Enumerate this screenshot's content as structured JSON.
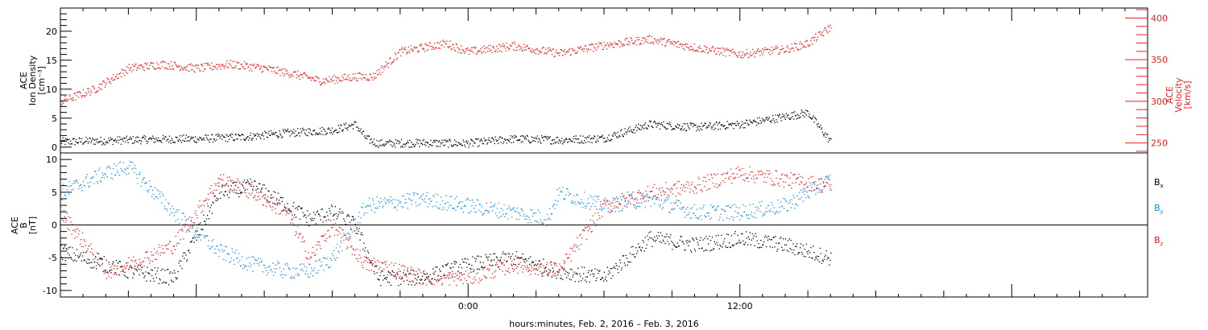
{
  "colors": {
    "black": "#000000",
    "red": "#ee1c1c",
    "blue": "#1a8ae6"
  },
  "xaxis": {
    "label": "hours:minutes, Feb.  2, 2016 – Feb.  3, 2016",
    "range_hours": [
      -18,
      30
    ],
    "tick_labels": [
      {
        "hour": 0,
        "text": "0:00"
      },
      {
        "hour": 12,
        "text": "12:00"
      }
    ]
  },
  "chart_data": [
    {
      "type": "scatter",
      "panel": "top",
      "left_axis": {
        "label_lines": [
          "ACE",
          "Ion Density",
          "[cm⁻³]"
        ],
        "ylim": [
          -1,
          24
        ],
        "ticks": [
          "0",
          "5",
          "10",
          "15",
          "20"
        ]
      },
      "right_axis": {
        "label_lines": [
          "ACE",
          "Velocity",
          "[km/s]"
        ],
        "ylim": [
          238,
          412
        ],
        "ticks": [
          "250",
          "300",
          "350",
          "400"
        ],
        "color": "#ee1c1c"
      },
      "series": [
        {
          "axis": "left",
          "color": "#000000",
          "x": [
            -18,
            -16,
            -14,
            -12,
            -10,
            -8,
            -6,
            -5,
            -4.5,
            -4,
            -2,
            0,
            2,
            4,
            6,
            8,
            10,
            12,
            13.5,
            15,
            16
          ],
          "y": [
            1,
            1.2,
            1.4,
            1.5,
            1.8,
            2.5,
            3,
            4,
            1.5,
            0.7,
            0.8,
            0.7,
            1.5,
            1.3,
            1.6,
            4,
            3.5,
            4,
            5,
            6,
            1
          ]
        },
        {
          "axis": "right",
          "color": "#ee1c1c",
          "x": [
            -18,
            -16.5,
            -15,
            -13.5,
            -12,
            -10.5,
            -9,
            -7.5,
            -6.5,
            -5,
            -4.2,
            -3,
            -1,
            0,
            2,
            4,
            6,
            8,
            10,
            12,
            14,
            15,
            16
          ],
          "y": [
            300,
            315,
            340,
            345,
            340,
            345,
            340,
            332,
            325,
            330,
            330,
            360,
            370,
            360,
            367,
            358,
            368,
            375,
            365,
            357,
            363,
            370,
            390
          ]
        }
      ]
    },
    {
      "type": "scatter",
      "panel": "bottom",
      "left_axis": {
        "label_lines": [
          "ACE",
          "B",
          "[nT]"
        ],
        "ylim": [
          -11,
          11
        ],
        "ticks": [
          "-10",
          "-5",
          "0",
          "5",
          "10"
        ]
      },
      "zero_line": true,
      "legend": {
        "placement": "right",
        "entries": [
          {
            "name": "Bx",
            "main": "B",
            "sub": "x",
            "color": "#000000"
          },
          {
            "name": "By",
            "main": "B",
            "sub": "y",
            "color": "#1a8ae6"
          },
          {
            "name": "Bz",
            "main": "B",
            "sub": "z",
            "color": "#ee1c1c"
          }
        ]
      },
      "series": [
        {
          "name": "Bx",
          "color": "#000000",
          "x": [
            -18,
            -16,
            -15,
            -13,
            -11,
            -9.5,
            -8,
            -7,
            -6,
            -5,
            -4,
            -2,
            0,
            2,
            4,
            6,
            8,
            10,
            12,
            14,
            16
          ],
          "y": [
            -4,
            -6,
            -7,
            -8,
            5,
            6,
            3,
            1,
            2,
            0,
            -8,
            -8,
            -6,
            -5,
            -7,
            -8,
            -2,
            -3,
            -2,
            -3,
            -5
          ]
        },
        {
          "name": "By",
          "color": "#1a8ae6",
          "x": [
            -18,
            -16,
            -15,
            -13,
            -11,
            -9.5,
            -8,
            -7,
            -6,
            -4.5,
            -2,
            0,
            2,
            3.5,
            4,
            6,
            8,
            10,
            12,
            14,
            16
          ],
          "y": [
            5,
            8,
            9,
            2,
            -4,
            -6,
            -7,
            -7,
            -5,
            3,
            4,
            3,
            2,
            1,
            5,
            3,
            4,
            2,
            2,
            3,
            7
          ]
        },
        {
          "name": "Bz",
          "color": "#ee1c1c",
          "x": [
            -18,
            -16,
            -15,
            -13,
            -11,
            -9.5,
            -8,
            -7,
            -6,
            -4.5,
            -4,
            -2,
            0,
            2,
            4,
            6,
            8,
            10,
            12,
            14,
            16
          ],
          "y": [
            2,
            -7,
            -6,
            -3,
            7,
            5,
            2,
            -5,
            0,
            -6,
            -6,
            -8,
            -8,
            -6,
            -7,
            3,
            5,
            6,
            8,
            7,
            6
          ]
        }
      ]
    }
  ]
}
